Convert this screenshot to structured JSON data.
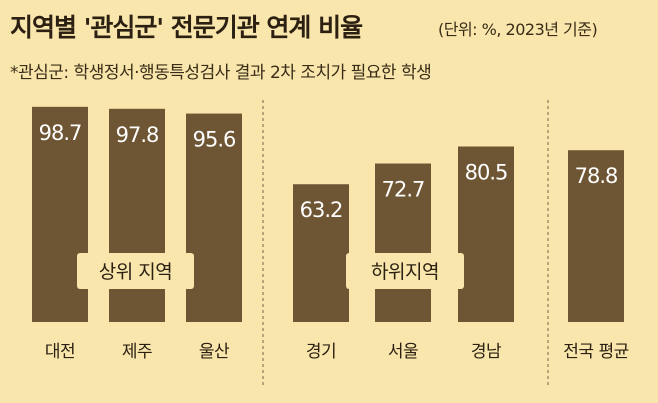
{
  "header": {
    "title": "지역별 '관심군' 전문기관 연계 비율",
    "unit_note": "(단위: %, 2023년 기준)",
    "footnote": "*관심군: 학생정서·행동특성검사 결과 2차 조치가 필요한 학생"
  },
  "colors": {
    "background": "#f8e6ac",
    "bar": "#6e5533",
    "bar_value_text": "#ffffff",
    "group_label_bg": "#f8e6ac",
    "divider": "#8a7a5a"
  },
  "chart_data": {
    "type": "bar",
    "title": "지역별 '관심군' 전문기관 연계 비율",
    "ylabel": "",
    "xlabel": "",
    "unit": "%",
    "ylim": [
      0,
      100
    ],
    "categories": [
      "대전",
      "제주",
      "울산",
      "경기",
      "서울",
      "경남",
      "전국 평균"
    ],
    "values": [
      98.7,
      97.8,
      95.6,
      63.2,
      72.7,
      80.5,
      78.8
    ],
    "value_labels": [
      "98.7",
      "97.8",
      "95.6",
      "63.2",
      "72.7",
      "80.5",
      "78.8"
    ],
    "groups": [
      {
        "label": "상위 지역",
        "members": [
          0,
          1,
          2
        ]
      },
      {
        "label": "하위지역",
        "members": [
          3,
          4,
          5
        ]
      }
    ],
    "grid": false,
    "legend": "none"
  }
}
